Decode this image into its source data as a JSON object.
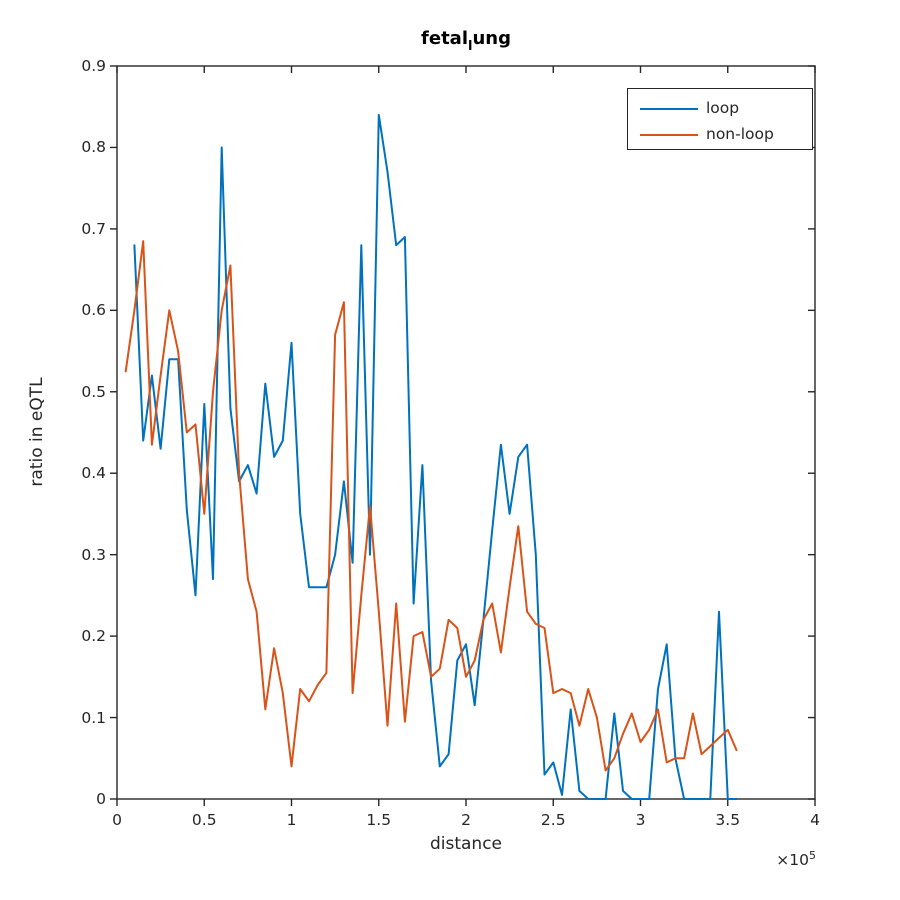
{
  "title": {
    "prefix": "fetal",
    "subscript": "l",
    "suffix": "ung"
  },
  "axes": {
    "xlabel": "distance",
    "ylabel": "ratio in eQTL",
    "x_offset_base": "×10",
    "x_offset_exp": "5"
  },
  "legend": {
    "items": [
      {
        "label": "loop",
        "color": "#0072BD"
      },
      {
        "label": "non-loop",
        "color": "#D95319"
      }
    ]
  },
  "chart_data": {
    "type": "line",
    "title": "fetal_lung",
    "xlabel": "distance",
    "ylabel": "ratio in eQTL",
    "xlim": [
      0,
      4
    ],
    "ylim": [
      0,
      0.9
    ],
    "x_unit": "1e5",
    "grid": false,
    "legend_position": "upper right inside",
    "x_tick_values": [
      0,
      0.5,
      1,
      1.5,
      2,
      2.5,
      3,
      3.5,
      4
    ],
    "x_tick_labels": [
      "0",
      "0.5",
      "1",
      "1.5",
      "2",
      "2.5",
      "3",
      "3.5",
      "4"
    ],
    "y_tick_values": [
      0,
      0.1,
      0.2,
      0.3,
      0.4,
      0.5,
      0.6,
      0.7,
      0.8,
      0.9
    ],
    "y_tick_labels": [
      "0",
      "0.1",
      "0.2",
      "0.3",
      "0.4",
      "0.5",
      "0.6",
      "0.7",
      "0.8",
      "0.9"
    ],
    "series": [
      {
        "name": "loop",
        "color": "#0072BD",
        "x": [
          0.1,
          0.15,
          0.2,
          0.25,
          0.3,
          0.35,
          0.4,
          0.45,
          0.5,
          0.55,
          0.6,
          0.65,
          0.7,
          0.75,
          0.8,
          0.85,
          0.9,
          0.95,
          1.0,
          1.05,
          1.1,
          1.15,
          1.2,
          1.25,
          1.3,
          1.35,
          1.4,
          1.45,
          1.5,
          1.55,
          1.6,
          1.65,
          1.7,
          1.75,
          1.8,
          1.85,
          1.9,
          1.95,
          2.0,
          2.05,
          2.1,
          2.15,
          2.2,
          2.25,
          2.3,
          2.35,
          2.4,
          2.45,
          2.5,
          2.55,
          2.6,
          2.65,
          2.7,
          2.75,
          2.8,
          2.85,
          2.9,
          2.95,
          3.0,
          3.05,
          3.1,
          3.15,
          3.2,
          3.25,
          3.3,
          3.35,
          3.4,
          3.45,
          3.5,
          3.55
        ],
        "values": [
          0.68,
          0.44,
          0.52,
          0.43,
          0.54,
          0.54,
          0.355,
          0.25,
          0.485,
          0.27,
          0.8,
          0.48,
          0.39,
          0.41,
          0.375,
          0.51,
          0.42,
          0.44,
          0.56,
          0.35,
          0.26,
          0.26,
          0.26,
          0.3,
          0.39,
          0.29,
          0.68,
          0.3,
          0.84,
          0.77,
          0.68,
          0.69,
          0.24,
          0.41,
          0.145,
          0.04,
          0.055,
          0.17,
          0.19,
          0.115,
          0.22,
          0.33,
          0.435,
          0.35,
          0.42,
          0.435,
          0.3,
          0.03,
          0.045,
          0.005,
          0.11,
          0.01,
          0.0,
          0.0,
          0.0,
          0.105,
          0.01,
          0.0,
          0.0,
          0.0,
          0.135,
          0.19,
          0.05,
          0.0,
          0.0,
          0.0,
          0.0,
          0.23,
          0.0,
          0.0
        ]
      },
      {
        "name": "non-loop",
        "color": "#D95319",
        "x": [
          0.05,
          0.1,
          0.15,
          0.2,
          0.25,
          0.3,
          0.35,
          0.4,
          0.45,
          0.5,
          0.55,
          0.6,
          0.65,
          0.7,
          0.75,
          0.8,
          0.85,
          0.9,
          0.95,
          1.0,
          1.05,
          1.1,
          1.15,
          1.2,
          1.25,
          1.3,
          1.35,
          1.4,
          1.45,
          1.5,
          1.55,
          1.6,
          1.65,
          1.7,
          1.75,
          1.8,
          1.85,
          1.9,
          1.95,
          2.0,
          2.05,
          2.1,
          2.15,
          2.2,
          2.25,
          2.3,
          2.35,
          2.4,
          2.45,
          2.5,
          2.55,
          2.6,
          2.65,
          2.7,
          2.75,
          2.8,
          2.85,
          2.9,
          2.95,
          3.0,
          3.05,
          3.1,
          3.15,
          3.2,
          3.25,
          3.3,
          3.35,
          3.4,
          3.45,
          3.5,
          3.55
        ],
        "values": [
          0.525,
          0.6,
          0.685,
          0.435,
          0.52,
          0.6,
          0.55,
          0.45,
          0.46,
          0.35,
          0.5,
          0.6,
          0.655,
          0.4,
          0.27,
          0.23,
          0.11,
          0.185,
          0.13,
          0.04,
          0.135,
          0.12,
          0.14,
          0.155,
          0.57,
          0.61,
          0.13,
          0.25,
          0.36,
          0.23,
          0.09,
          0.24,
          0.095,
          0.2,
          0.205,
          0.15,
          0.16,
          0.22,
          0.21,
          0.15,
          0.17,
          0.22,
          0.24,
          0.18,
          0.26,
          0.335,
          0.23,
          0.215,
          0.21,
          0.13,
          0.135,
          0.13,
          0.09,
          0.135,
          0.1,
          0.035,
          0.05,
          0.08,
          0.105,
          0.07,
          0.085,
          0.11,
          0.045,
          0.05,
          0.05,
          0.105,
          0.055,
          0.065,
          0.075,
          0.085,
          0.06
        ]
      }
    ]
  }
}
